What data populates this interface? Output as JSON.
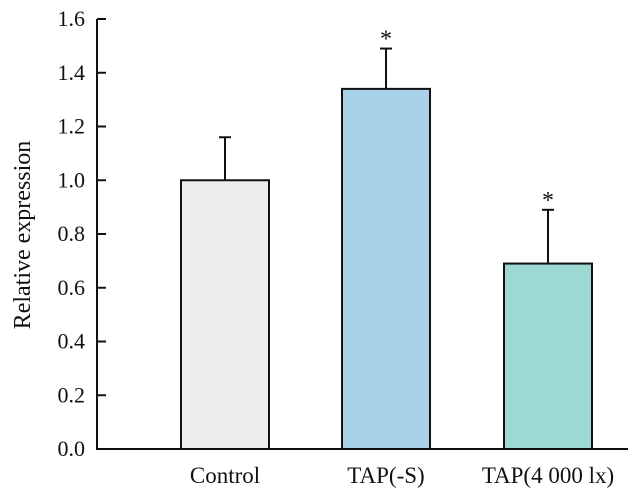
{
  "chart_data": {
    "type": "bar",
    "title": "",
    "xlabel": "",
    "ylabel": "Relative expression",
    "ylim": [
      0,
      1.6
    ],
    "yticks": [
      "0.0",
      "0.2",
      "0.4",
      "0.6",
      "0.8",
      "1.0",
      "1.2",
      "1.4",
      "1.6"
    ],
    "categories": [
      "Control",
      "TAP(-S)",
      "TAP(4 000 lx)"
    ],
    "values": [
      1.0,
      1.34,
      0.69
    ],
    "errors": [
      0.16,
      0.15,
      0.2
    ],
    "significance": [
      "",
      "*",
      "*"
    ],
    "colors": [
      "#ededef",
      "#a9d1e8",
      "#9dd8d2"
    ],
    "grid": false,
    "legend": "none"
  }
}
